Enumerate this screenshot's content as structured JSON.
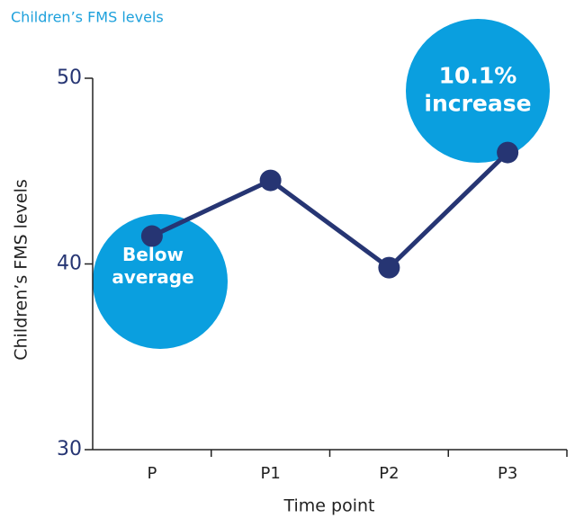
{
  "chart_data": {
    "type": "line",
    "title": "Children’s FMS levels",
    "y_label": "Children’s FMS levels",
    "x_label": "Time point",
    "categories": [
      "P",
      "P1",
      "P2",
      "P3"
    ],
    "series": [
      {
        "name": "Children’s FMS levels",
        "color": "#263573",
        "values": [
          41.5,
          44.5,
          39.8,
          46
        ]
      }
    ],
    "ylim": [
      30,
      50
    ],
    "yticks": [
      30,
      40,
      50
    ],
    "annotations": [
      {
        "lines": [
          "Below",
          "average"
        ],
        "color": "#0a9fdf"
      },
      {
        "lines": [
          "10.1%",
          "increase"
        ],
        "color": "#0a9fdf"
      }
    ]
  }
}
